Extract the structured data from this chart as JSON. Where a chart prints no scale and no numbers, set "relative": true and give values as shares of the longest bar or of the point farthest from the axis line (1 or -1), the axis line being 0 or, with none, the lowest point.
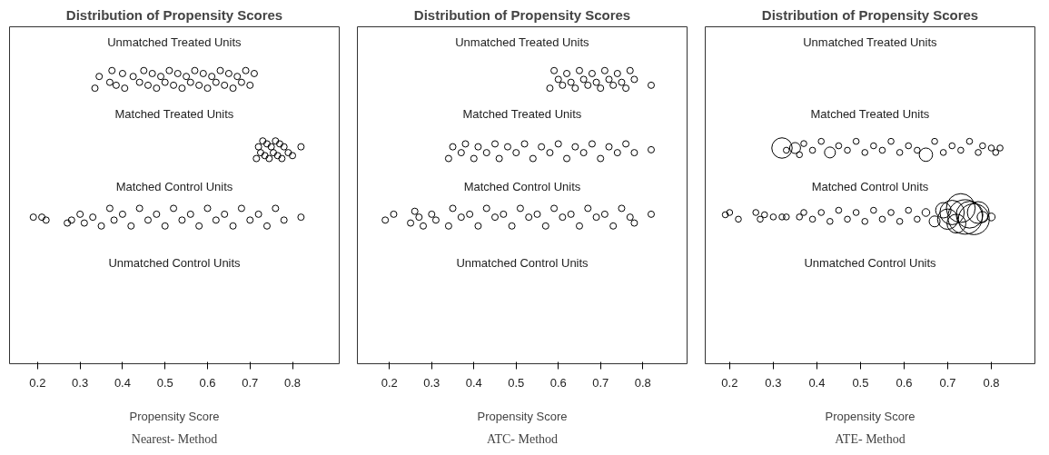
{
  "chart_data": [
    {
      "type": "scatter",
      "title": "Distribution of Propensity Scores",
      "xlabel": "Propensity Score",
      "xlim": [
        0.134,
        0.91
      ],
      "xticks": [
        0.2,
        0.3,
        0.4,
        0.5,
        0.6,
        0.7,
        0.8
      ],
      "relative": true,
      "tick_labels": "x",
      "grid": false,
      "marker": "circle",
      "annotations": [
        "Unmatched Treated Units",
        "Matched Treated Units",
        "Matched Control Units",
        "Unmatched Control Units",
        "Nearest- Method"
      ],
      "series": [
        {
          "color": "#000000",
          "x": [
            0.335,
            0.345,
            0.37,
            0.375,
            0.385,
            0.4,
            0.405,
            0.425,
            0.44,
            0.45,
            0.46,
            0.47,
            0.48,
            0.49,
            0.5,
            0.51,
            0.52,
            0.53,
            0.54,
            0.55,
            0.56,
            0.57,
            0.58,
            0.59,
            0.6,
            0.61,
            0.62,
            0.63,
            0.64,
            0.65,
            0.66,
            0.67,
            0.68,
            0.69,
            0.7,
            0.71
          ],
          "values": [
            0.94,
            0.98,
            0.96,
            1.0,
            0.95,
            0.99,
            0.94,
            0.98,
            0.96,
            1.0,
            0.95,
            0.99,
            0.94,
            0.98,
            0.96,
            1.0,
            0.95,
            0.99,
            0.94,
            0.98,
            0.96,
            1.0,
            0.95,
            0.99,
            0.94,
            0.98,
            0.96,
            1.0,
            0.95,
            0.99,
            0.94,
            0.98,
            0.96,
            1.0,
            0.95,
            0.99
          ]
        },
        {
          "color": "#000000",
          "x": [
            0.715,
            0.72,
            0.725,
            0.73,
            0.735,
            0.74,
            0.745,
            0.75,
            0.755,
            0.76,
            0.765,
            0.77,
            0.775,
            0.78,
            0.79,
            0.8,
            0.82
          ],
          "values": [
            0.7,
            0.74,
            0.72,
            0.76,
            0.71,
            0.75,
            0.7,
            0.74,
            0.72,
            0.76,
            0.71,
            0.75,
            0.7,
            0.74,
            0.72,
            0.71,
            0.74
          ]
        },
        {
          "color": "#000000",
          "x": [
            0.19,
            0.21,
            0.22,
            0.27,
            0.28,
            0.3,
            0.31,
            0.33,
            0.35,
            0.37,
            0.38,
            0.4,
            0.42,
            0.44,
            0.46,
            0.48,
            0.5,
            0.52,
            0.54,
            0.56,
            0.58,
            0.6,
            0.62,
            0.64,
            0.66,
            0.68,
            0.7,
            0.72,
            0.74,
            0.76,
            0.78,
            0.82
          ],
          "values": [
            0.5,
            0.5,
            0.49,
            0.48,
            0.49,
            0.51,
            0.48,
            0.5,
            0.47,
            0.53,
            0.49,
            0.51,
            0.47,
            0.53,
            0.49,
            0.51,
            0.47,
            0.53,
            0.49,
            0.51,
            0.47,
            0.53,
            0.49,
            0.51,
            0.47,
            0.53,
            0.49,
            0.51,
            0.47,
            0.53,
            0.49,
            0.5
          ]
        }
      ]
    },
    {
      "type": "scatter",
      "title": "Distribution of Propensity Scores",
      "xlabel": "Propensity Score",
      "xlim": [
        0.124,
        0.905
      ],
      "xticks": [
        0.2,
        0.3,
        0.4,
        0.5,
        0.6,
        0.7,
        0.8
      ],
      "relative": true,
      "tick_labels": "x",
      "grid": false,
      "marker": "circle",
      "annotations": [
        "Unmatched Treated Units",
        "Matched Treated Units",
        "Matched Control Units",
        "Unmatched Control Units",
        "ATC- Method"
      ],
      "series": [
        {
          "color": "#000000",
          "x": [
            0.58,
            0.59,
            0.6,
            0.61,
            0.62,
            0.63,
            0.64,
            0.65,
            0.66,
            0.67,
            0.68,
            0.69,
            0.7,
            0.71,
            0.72,
            0.73,
            0.74,
            0.75,
            0.76,
            0.77,
            0.78,
            0.82
          ],
          "values": [
            0.94,
            1.0,
            0.97,
            0.95,
            0.99,
            0.96,
            0.94,
            1.0,
            0.97,
            0.95,
            0.99,
            0.96,
            0.94,
            1.0,
            0.97,
            0.95,
            0.99,
            0.96,
            0.94,
            1.0,
            0.97,
            0.95
          ]
        },
        {
          "color": "#000000",
          "x": [
            0.34,
            0.35,
            0.37,
            0.38,
            0.4,
            0.41,
            0.43,
            0.45,
            0.46,
            0.48,
            0.5,
            0.52,
            0.54,
            0.56,
            0.58,
            0.6,
            0.62,
            0.64,
            0.66,
            0.68,
            0.7,
            0.72,
            0.74,
            0.76,
            0.78,
            0.82
          ],
          "values": [
            0.7,
            0.74,
            0.72,
            0.75,
            0.7,
            0.74,
            0.72,
            0.75,
            0.7,
            0.74,
            0.72,
            0.75,
            0.7,
            0.74,
            0.72,
            0.75,
            0.7,
            0.74,
            0.72,
            0.75,
            0.7,
            0.74,
            0.72,
            0.75,
            0.72,
            0.73
          ]
        },
        {
          "color": "#000000",
          "x": [
            0.19,
            0.21,
            0.25,
            0.26,
            0.27,
            0.28,
            0.3,
            0.31,
            0.34,
            0.35,
            0.37,
            0.39,
            0.41,
            0.43,
            0.45,
            0.47,
            0.49,
            0.51,
            0.53,
            0.55,
            0.57,
            0.59,
            0.61,
            0.63,
            0.65,
            0.67,
            0.69,
            0.71,
            0.73,
            0.75,
            0.77,
            0.78,
            0.82
          ],
          "values": [
            0.49,
            0.51,
            0.48,
            0.52,
            0.5,
            0.47,
            0.51,
            0.49,
            0.47,
            0.53,
            0.5,
            0.51,
            0.47,
            0.53,
            0.5,
            0.51,
            0.47,
            0.53,
            0.5,
            0.51,
            0.47,
            0.53,
            0.5,
            0.51,
            0.47,
            0.53,
            0.5,
            0.51,
            0.47,
            0.53,
            0.5,
            0.48,
            0.51
          ]
        }
      ]
    },
    {
      "type": "scatter",
      "title": "Distribution of Propensity Scores",
      "xlabel": "Propensity Score",
      "xlim": [
        0.144,
        0.9
      ],
      "xticks": [
        0.2,
        0.3,
        0.4,
        0.5,
        0.6,
        0.7,
        0.8
      ],
      "relative": true,
      "tick_labels": "x",
      "grid": false,
      "marker": "circle",
      "annotations": [
        "Unmatched Treated Units",
        "Matched Treated Units",
        "Matched Control Units",
        "Unmatched Control Units",
        "ATE- Method"
      ],
      "series": [
        {
          "type": "bubble",
          "color": "#000000",
          "x": [
            0.32,
            0.33,
            0.35,
            0.36,
            0.37,
            0.39,
            0.41,
            0.43,
            0.45,
            0.47,
            0.49,
            0.51,
            0.53,
            0.55,
            0.57,
            0.59,
            0.61,
            0.63,
            0.65,
            0.67,
            0.69,
            0.71,
            0.73,
            0.75,
            0.77,
            0.78,
            0.8,
            0.81,
            0.82
          ],
          "values": [
            0.97,
            0.96,
            0.97,
            0.94,
            0.99,
            0.96,
            1.0,
            0.95,
            0.98,
            0.96,
            1.0,
            0.95,
            0.98,
            0.96,
            1.0,
            0.95,
            0.98,
            0.96,
            0.94,
            1.0,
            0.95,
            0.98,
            0.96,
            1.0,
            0.95,
            0.98,
            0.97,
            0.95,
            0.97
          ],
          "sizes": [
            0.35,
            0.03,
            0.1,
            0.03,
            0.03,
            0.03,
            0.03,
            0.1,
            0.03,
            0.03,
            0.03,
            0.03,
            0.03,
            0.03,
            0.03,
            0.03,
            0.03,
            0.03,
            0.15,
            0.03,
            0.03,
            0.03,
            0.03,
            0.03,
            0.03,
            0.03,
            0.03,
            0.03,
            0.03
          ]
        },
        {
          "type": "bubble",
          "color": "#000000",
          "x": [
            0.19,
            0.2,
            0.22,
            0.26,
            0.27,
            0.28,
            0.3,
            0.32,
            0.33,
            0.36,
            0.37,
            0.39,
            0.41,
            0.43,
            0.45,
            0.47,
            0.49,
            0.51,
            0.53,
            0.55,
            0.57,
            0.59,
            0.61,
            0.63,
            0.65,
            0.67,
            0.69,
            0.7,
            0.71,
            0.72,
            0.73,
            0.74,
            0.75,
            0.76,
            0.77,
            0.78,
            0.8
          ],
          "values": [
            0.67,
            0.68,
            0.65,
            0.68,
            0.65,
            0.67,
            0.66,
            0.66,
            0.66,
            0.66,
            0.68,
            0.65,
            0.68,
            0.64,
            0.69,
            0.65,
            0.68,
            0.64,
            0.69,
            0.65,
            0.68,
            0.64,
            0.69,
            0.65,
            0.68,
            0.64,
            0.69,
            0.65,
            0.68,
            0.63,
            0.7,
            0.66,
            0.67,
            0.65,
            0.68,
            0.66,
            0.66
          ],
          "sizes": [
            0.03,
            0.03,
            0.03,
            0.03,
            0.03,
            0.03,
            0.03,
            0.03,
            0.03,
            0.03,
            0.03,
            0.03,
            0.03,
            0.03,
            0.03,
            0.03,
            0.03,
            0.03,
            0.03,
            0.03,
            0.03,
            0.03,
            0.03,
            0.03,
            0.05,
            0.1,
            0.2,
            0.35,
            0.5,
            0.3,
            0.7,
            1,
            0.6,
            0.8,
            0.4,
            0.1,
            0.05
          ]
        }
      ]
    }
  ]
}
